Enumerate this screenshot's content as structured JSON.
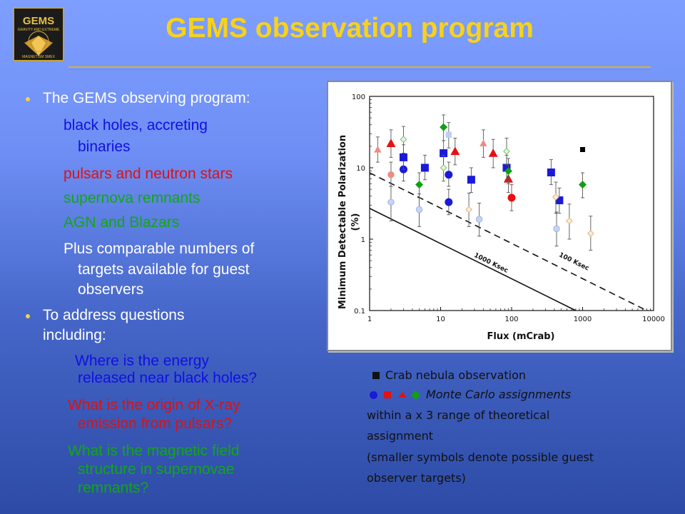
{
  "header": {
    "title": "GEMS observation program",
    "logo_lines": [
      "GEMS",
      "GRAVITY AND EXTREME",
      "MAGNETISM SMEX"
    ]
  },
  "text_panel": {
    "bullet1": "The GEMS observing program:",
    "item_black_holes_1": "black holes, accreting",
    "item_black_holes_2": "binaries",
    "item_pulsars": "pulsars and neutron stars",
    "item_snr": "supernova remnants",
    "item_agn": "AGN and Blazars",
    "plus_1": "Plus comparable numbers of",
    "plus_2": "targets available for guest",
    "plus_3": "observers",
    "bullet2_1": "To address questions",
    "bullet2_2": "including:",
    "q1_1": "Where is the energy",
    "q1_2": "released near black holes?",
    "q2_1": "What is the origin of X-ray",
    "q2_2": "emission from pulsars?",
    "q3_1": "What is the magnetic field",
    "q3_2": "structure in supernovae",
    "q3_3": "remnants?",
    "colors": {
      "white": "#ffffff",
      "blue": "#1010e0",
      "red": "#e01010",
      "green": "#10a810",
      "bullet": "#f3d24a"
    }
  },
  "legend": {
    "crab_text": "Crab nebula observation",
    "mc_text": "Monte Carlo assignments",
    "line3": "within a  x 3 range of theoretical",
    "line4": "assignment",
    "line5": "(smaller symbols denote possible guest",
    "line6": "observer targets)"
  },
  "chart_data": {
    "type": "scatter",
    "xlabel": "Flux (mCrab)",
    "ylabel_1": "Minimum Detectable Polarization",
    "ylabel_2": "(%)",
    "xscale": "log",
    "yscale": "log",
    "xlim": [
      1,
      10000
    ],
    "ylim": [
      0.1,
      100
    ],
    "xticks": [
      "1",
      "10",
      "100",
      "1000",
      "10000"
    ],
    "yticks": [
      "0.1",
      "1",
      "10",
      "100"
    ],
    "grid": false,
    "lines": [
      {
        "label": "100 Ksec",
        "dash": true,
        "points": [
          [
            1,
            8.5
          ],
          [
            8000,
            0.1
          ]
        ]
      },
      {
        "label": "1000 Ksec",
        "dash": false,
        "points": [
          [
            1,
            2.7
          ],
          [
            800,
            0.1
          ]
        ]
      }
    ],
    "colors": {
      "blue": "#1a1ad8",
      "red": "#e81010",
      "green": "#10a010",
      "black": "#000000"
    },
    "points": [
      {
        "shape": "triangle",
        "color": "red",
        "x": 2.0,
        "y": 22,
        "lo": 14,
        "hi": 34,
        "light": false
      },
      {
        "shape": "triangle",
        "color": "red",
        "x": 1.3,
        "y": 18,
        "lo": 12,
        "hi": 27,
        "light": true
      },
      {
        "shape": "triangle",
        "color": "red",
        "x": 16,
        "y": 17,
        "lo": 11,
        "hi": 26,
        "light": false
      },
      {
        "shape": "triangle",
        "color": "red",
        "x": 40,
        "y": 22,
        "lo": 14,
        "hi": 34,
        "light": true
      },
      {
        "shape": "triangle",
        "color": "red",
        "x": 55,
        "y": 16,
        "lo": 10,
        "hi": 25,
        "light": false
      },
      {
        "shape": "triangle",
        "color": "red",
        "x": 90,
        "y": 7,
        "lo": 4.5,
        "hi": 11,
        "light": false
      },
      {
        "shape": "circle",
        "color": "red",
        "x": 2.0,
        "y": 8.0,
        "lo": 5.5,
        "hi": 12,
        "light": true
      },
      {
        "shape": "circle",
        "color": "red",
        "x": 100,
        "y": 3.8,
        "lo": 2.5,
        "hi": 5.8,
        "light": false
      },
      {
        "shape": "circle",
        "color": "blue",
        "x": 3.0,
        "y": 9.5,
        "lo": 6.5,
        "hi": 14,
        "light": false
      },
      {
        "shape": "circle",
        "color": "blue",
        "x": 13,
        "y": 8.0,
        "lo": 5.5,
        "hi": 12,
        "light": false
      },
      {
        "shape": "circle",
        "color": "blue",
        "x": 13,
        "y": 3.3,
        "lo": 2.2,
        "hi": 5,
        "light": false
      },
      {
        "shape": "circle",
        "color": "blue",
        "x": 2.0,
        "y": 3.3,
        "lo": 1.8,
        "hi": 5.5,
        "light": true
      },
      {
        "shape": "circle",
        "color": "blue",
        "x": 5.0,
        "y": 2.6,
        "lo": 1.5,
        "hi": 4.3,
        "light": true
      },
      {
        "shape": "circle",
        "color": "blue",
        "x": 35,
        "y": 1.9,
        "lo": 1.1,
        "hi": 3.2,
        "light": true
      },
      {
        "shape": "circle",
        "color": "blue",
        "x": 430,
        "y": 1.4,
        "lo": 0.8,
        "hi": 2.4,
        "light": true
      },
      {
        "shape": "square",
        "color": "blue",
        "x": 3.0,
        "y": 14,
        "lo": 9.5,
        "hi": 21,
        "light": false
      },
      {
        "shape": "square",
        "color": "blue",
        "x": 6.0,
        "y": 10,
        "lo": 6.8,
        "hi": 15,
        "light": false
      },
      {
        "shape": "square",
        "color": "blue",
        "x": 11,
        "y": 16,
        "lo": 10.5,
        "hi": 24,
        "light": false
      },
      {
        "shape": "square",
        "color": "blue",
        "x": 27,
        "y": 6.8,
        "lo": 4.5,
        "hi": 10,
        "light": false
      },
      {
        "shape": "square",
        "color": "blue",
        "x": 85,
        "y": 10,
        "lo": 6.8,
        "hi": 15,
        "light": false
      },
      {
        "shape": "square",
        "color": "blue",
        "x": 360,
        "y": 8.6,
        "lo": 5.8,
        "hi": 13,
        "light": false
      },
      {
        "shape": "square",
        "color": "blue",
        "x": 470,
        "y": 3.5,
        "lo": 2.3,
        "hi": 5.2,
        "light": false
      },
      {
        "shape": "square",
        "color": "blue",
        "x": 13,
        "y": 29,
        "lo": 19,
        "hi": 43,
        "light": true
      },
      {
        "shape": "square",
        "color": "black",
        "x": 1000,
        "y": 18,
        "lo": null,
        "hi": null,
        "light": false
      },
      {
        "shape": "diamond",
        "color": "green",
        "x": 5.0,
        "y": 5.8,
        "lo": 3.8,
        "hi": 8.5,
        "light": false
      },
      {
        "shape": "diamond",
        "color": "green",
        "x": 11,
        "y": 37,
        "lo": 24,
        "hi": 55,
        "light": false
      },
      {
        "shape": "diamond",
        "color": "green",
        "x": 90,
        "y": 9.0,
        "lo": 6,
        "hi": 13.5,
        "light": false
      },
      {
        "shape": "diamond",
        "color": "green",
        "x": 1000,
        "y": 5.8,
        "lo": 3.8,
        "hi": 8.5,
        "light": false
      },
      {
        "shape": "diamond",
        "color": "green",
        "x": 3.0,
        "y": 25,
        "lo": 16,
        "hi": 38,
        "light": true
      },
      {
        "shape": "diamond",
        "color": "green",
        "x": 11,
        "y": 10,
        "lo": 6.5,
        "hi": 15,
        "light": true
      },
      {
        "shape": "diamond",
        "color": "green",
        "x": 85,
        "y": 17,
        "lo": 11,
        "hi": 26,
        "light": true
      },
      {
        "shape": "diamond",
        "color": "orange",
        "x": 25,
        "y": 2.6,
        "lo": 1.5,
        "hi": 4.4,
        "light": true
      },
      {
        "shape": "diamond",
        "color": "orange",
        "x": 420,
        "y": 3.9,
        "lo": 2.3,
        "hi": 6.3,
        "light": true
      },
      {
        "shape": "diamond",
        "color": "orange",
        "x": 650,
        "y": 1.8,
        "lo": 1.0,
        "hi": 3.1,
        "light": true
      },
      {
        "shape": "diamond",
        "color": "orange",
        "x": 1300,
        "y": 1.2,
        "lo": 0.7,
        "hi": 2.1,
        "light": true
      }
    ]
  }
}
